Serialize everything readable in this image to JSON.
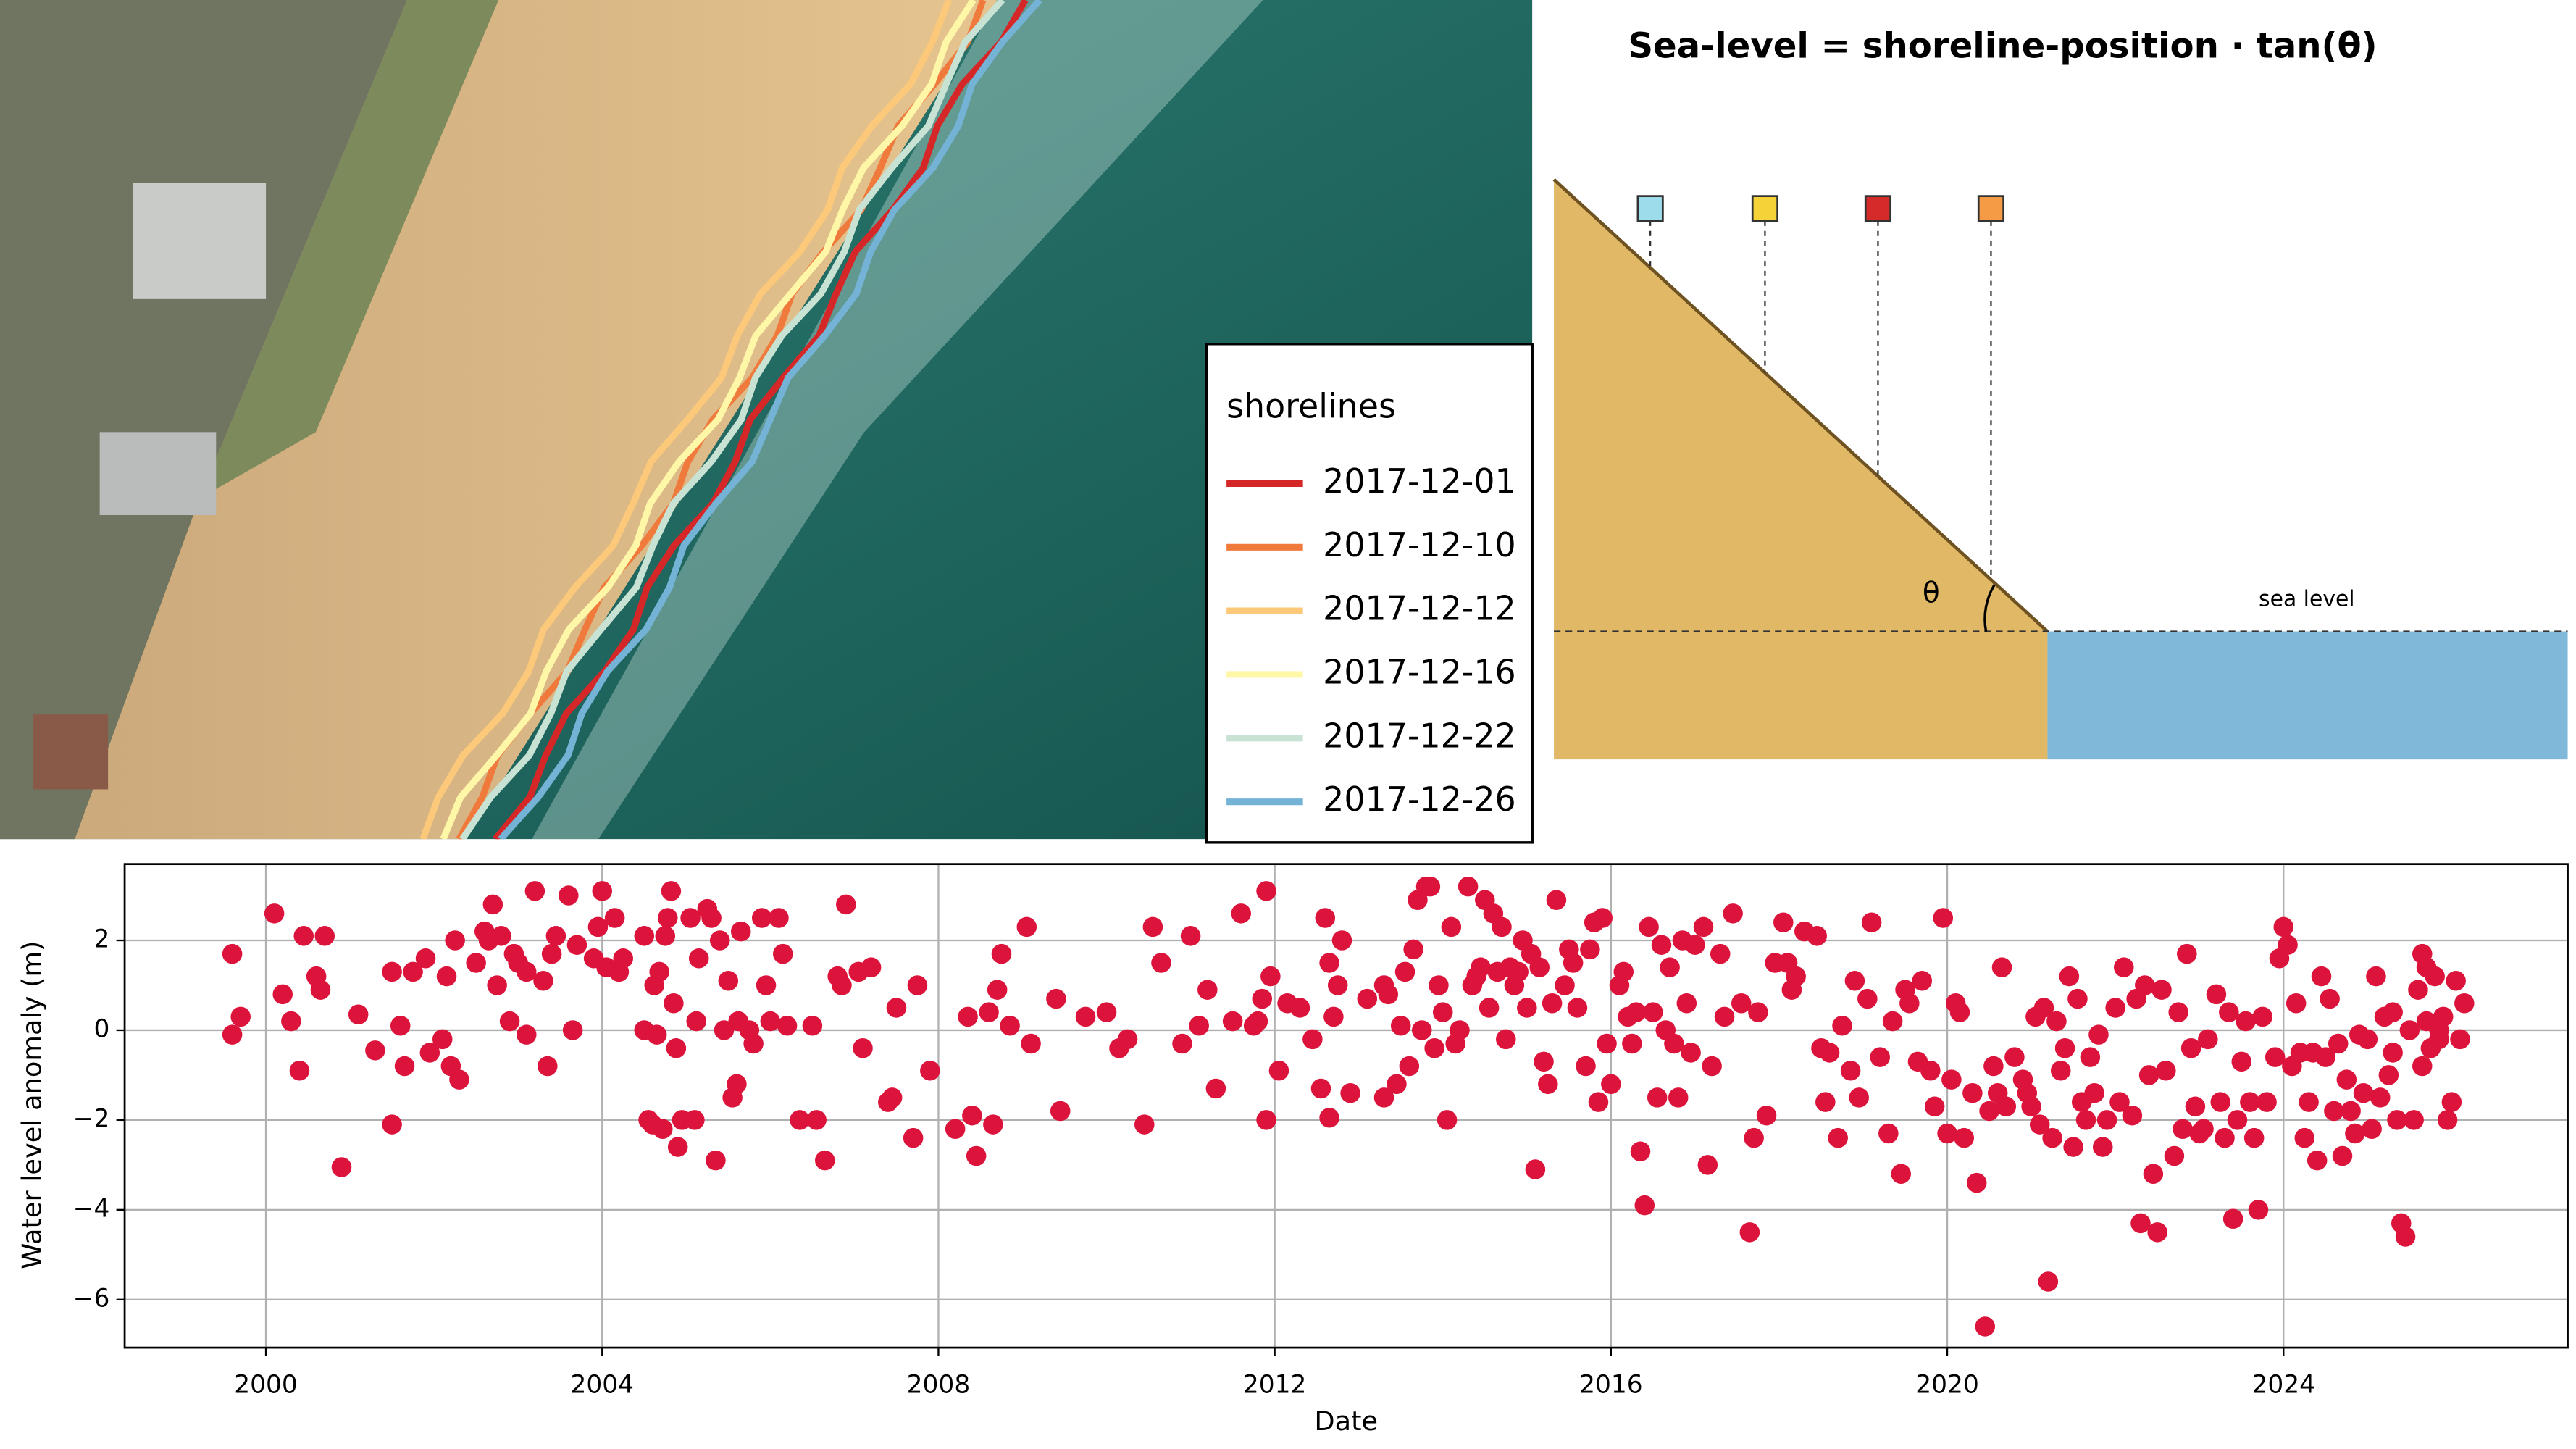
{
  "map": {
    "legend_title": "shorelines",
    "shorelines": [
      {
        "name": "2017-12-01",
        "color": "#d62728"
      },
      {
        "name": "2017-12-10",
        "color": "#f07a3c"
      },
      {
        "name": "2017-12-12",
        "color": "#fcc87a"
      },
      {
        "name": "2017-12-16",
        "color": "#fff7a8"
      },
      {
        "name": "2017-12-22",
        "color": "#c8e2d3"
      },
      {
        "name": "2017-12-26",
        "color": "#74b3d6"
      }
    ]
  },
  "diagram": {
    "title": "Sea-level = shoreline-position · tan(θ)",
    "angle_label": "θ",
    "sea_label": "sea level",
    "marker_colors": [
      "#9ddcea",
      "#f5d338",
      "#d42a2a",
      "#f59a45"
    ]
  },
  "chart_data": {
    "type": "scatter",
    "x_label": "Date",
    "y_label": "Water level anomaly (m)",
    "color": "#dc143c",
    "grid": true,
    "xlim": [
      1998.32,
      2027.38
    ],
    "ylim": [
      -7.07,
      3.7
    ],
    "xticks": [
      2000,
      2004,
      2008,
      2012,
      2016,
      2020,
      2024
    ],
    "yticks": [
      {
        "value": -6,
        "label": "−6"
      },
      {
        "value": -4,
        "label": "−4"
      },
      {
        "value": -2,
        "label": "−2"
      },
      0,
      2
    ],
    "x": [
      1999.6,
      1999.6,
      1999.7,
      2000.1,
      2000.2,
      2000.3,
      2000.4,
      2000.45,
      2000.6,
      2000.65,
      2000.7,
      2000.9,
      2001.1,
      2001.3,
      2001.5,
      2001.5,
      2001.6,
      2001.65,
      2001.75,
      2001.9,
      2001.95,
      2002.1,
      2002.15,
      2002.2,
      2002.25,
      2002.3,
      2002.5,
      2002.6,
      2002.65,
      2002.7,
      2002.75,
      2002.8,
      2002.9,
      2002.95,
      2003.0,
      2003.1,
      2003.1,
      2003.2,
      2003.3,
      2003.35,
      2003.4,
      2003.45,
      2003.6,
      2003.65,
      2003.7,
      2003.9,
      2003.95,
      2004.05,
      2004.15,
      2004.2,
      2004.25,
      2004.0,
      2004.5,
      2004.5,
      2004.55,
      2004.6,
      2004.62,
      2004.65,
      2004.68,
      2004.72,
      2004.75,
      2004.78,
      2004.82,
      2004.85,
      2004.88,
      2004.9,
      2004.95,
      2005.05,
      2005.1,
      2005.12,
      2005.15,
      2005.25,
      2005.3,
      2005.35,
      2005.4,
      2005.45,
      2005.5,
      2005.55,
      2005.6,
      2005.62,
      2005.65,
      2005.75,
      2005.8,
      2005.9,
      2005.95,
      2006.0,
      2006.1,
      2006.15,
      2006.2,
      2006.35,
      2006.5,
      2006.55,
      2006.65,
      2006.8,
      2006.85,
      2006.9,
      2007.05,
      2007.1,
      2007.2,
      2007.4,
      2007.5,
      2007.45,
      2007.7,
      2007.75,
      2007.9,
      2008.2,
      2008.35,
      2008.4,
      2008.45,
      2008.6,
      2008.65,
      2008.7,
      2008.75,
      2008.85,
      2009.05,
      2009.1,
      2009.4,
      2009.45,
      2009.75,
      2010.0,
      2010.15,
      2010.25,
      2010.45,
      2010.55,
      2010.65,
      2010.9,
      2011.0,
      2011.1,
      2011.2,
      2011.3,
      2011.5,
      2011.6,
      2011.75,
      2011.8,
      2011.85,
      2011.9,
      2011.95,
      2012.05,
      2012.15,
      2012.3,
      2012.45,
      2012.55,
      2012.65,
      2012.7,
      2012.8,
      2011.9,
      2012.75,
      2012.9,
      2013.3,
      2013.35,
      2012.6,
      2012.65,
      2013.1,
      2013.3,
      2013.45,
      2013.5,
      2013.55,
      2013.6,
      2013.65,
      2013.7,
      2013.75,
      2013.8,
      2013.85,
      2013.9,
      2013.95,
      2014.0,
      2014.05,
      2014.1,
      2014.15,
      2014.2,
      2014.3,
      2014.35,
      2014.4,
      2014.45,
      2014.5,
      2014.55,
      2014.6,
      2014.65,
      2014.7,
      2014.75,
      2014.8,
      2014.85,
      2014.9,
      2014.95,
      2015.0,
      2015.05,
      2015.1,
      2015.15,
      2015.2,
      2015.25,
      2015.3,
      2015.35,
      2015.45,
      2015.5,
      2015.55,
      2015.6,
      2015.7,
      2015.75,
      2015.8,
      2015.85,
      2015.9,
      2015.95,
      2016.0,
      2016.1,
      2016.15,
      2016.2,
      2016.25,
      2016.3,
      2016.35,
      2016.4,
      2016.45,
      2016.5,
      2016.55,
      2016.6,
      2016.65,
      2016.7,
      2016.75,
      2016.8,
      2016.85,
      2016.9,
      2016.95,
      2017.0,
      2017.1,
      2017.15,
      2017.2,
      2017.3,
      2017.35,
      2017.45,
      2017.55,
      2017.65,
      2017.7,
      2017.75,
      2017.85,
      2017.95,
      2018.05,
      2018.1,
      2018.15,
      2018.2,
      2018.3,
      2018.45,
      2018.5,
      2018.55,
      2018.6,
      2018.7,
      2018.75,
      2018.85,
      2018.9,
      2018.95,
      2019.05,
      2019.1,
      2019.2,
      2019.3,
      2019.35,
      2019.45,
      2019.5,
      2019.55,
      2019.65,
      2019.7,
      2019.8,
      2019.85,
      2019.95,
      2020.0,
      2020.05,
      2020.1,
      2020.15,
      2020.2,
      2020.3,
      2020.35,
      2020.45,
      2020.5,
      2020.55,
      2020.6,
      2020.65,
      2020.7,
      2020.8,
      2020.9,
      2020.95,
      2021.0,
      2021.05,
      2021.1,
      2021.15,
      2021.2,
      2021.25,
      2021.3,
      2021.35,
      2021.4,
      2021.45,
      2021.5,
      2021.55,
      2021.6,
      2021.65,
      2021.7,
      2021.75,
      2021.8,
      2021.85,
      2021.9,
      2022.0,
      2022.05,
      2022.1,
      2022.2,
      2022.25,
      2022.3,
      2022.35,
      2022.4,
      2022.45,
      2022.5,
      2022.55,
      2022.6,
      2022.7,
      2022.75,
      2022.8,
      2022.85,
      2022.9,
      2022.95,
      2023.0,
      2023.05,
      2023.1,
      2023.2,
      2023.25,
      2023.3,
      2023.35,
      2023.4,
      2023.45,
      2023.5,
      2023.55,
      2023.6,
      2023.65,
      2023.7,
      2023.75,
      2023.8,
      2023.9,
      2023.95,
      2024.0,
      2024.05,
      2024.1,
      2024.15,
      2024.2,
      2024.25,
      2024.3,
      2024.35,
      2024.4,
      2024.45,
      2024.5,
      2024.55,
      2024.6,
      2024.65,
      2024.7,
      2024.75,
      2024.8,
      2024.85,
      2024.9,
      2024.95,
      2025.0,
      2025.05,
      2025.1,
      2025.15,
      2025.2,
      2025.25,
      2025.3,
      2025.35,
      2025.4,
      2025.45,
      2025.5,
      2025.55,
      2025.6,
      2025.65,
      2025.7,
      2025.75,
      2025.8,
      2025.85,
      2025.9,
      2025.95,
      2026.0,
      2026.05,
      2026.1,
      2026.15,
      2025.65,
      2025.85,
      2025.3,
      2025.7
    ],
    "values": [
      1.7,
      -0.1,
      0.3,
      2.6,
      0.8,
      0.2,
      -0.9,
      2.1,
      1.2,
      0.9,
      2.1,
      -3.05,
      0.35,
      -0.45,
      -2.1,
      1.3,
      0.1,
      -0.8,
      1.3,
      1.6,
      -0.5,
      -0.2,
      1.2,
      -0.8,
      2.0,
      -1.1,
      1.5,
      2.2,
      2.0,
      2.8,
      1.0,
      2.1,
      0.2,
      1.7,
      1.5,
      1.3,
      -0.1,
      3.1,
      1.1,
      -0.8,
      1.7,
      2.1,
      3.0,
      0.0,
      1.9,
      1.6,
      2.3,
      1.4,
      2.5,
      1.3,
      1.6,
      3.1,
      2.1,
      0.0,
      -2.0,
      -2.1,
      1.0,
      -0.1,
      1.3,
      -2.2,
      2.1,
      2.5,
      3.1,
      0.6,
      -0.4,
      -2.6,
      -2.0,
      2.5,
      -2.0,
      0.2,
      1.6,
      2.7,
      2.5,
      -2.9,
      2.0,
      0.0,
      1.1,
      -1.5,
      -1.2,
      0.2,
      2.2,
      0.0,
      -0.3,
      2.5,
      1.0,
      0.2,
      2.5,
      1.7,
      0.1,
      -2.0,
      0.1,
      -2.0,
      -2.9,
      1.2,
      1.0,
      2.8,
      1.3,
      -0.4,
      1.4,
      -1.6,
      0.5,
      -1.5,
      -2.4,
      1.0,
      -0.9,
      -2.2,
      0.3,
      -1.9,
      -2.8,
      0.4,
      -2.1,
      0.9,
      1.7,
      0.1,
      2.3,
      -0.3,
      0.7,
      -1.8,
      0.3,
      0.4,
      -0.4,
      -0.2,
      -2.1,
      2.3,
      1.5,
      -0.3,
      2.1,
      0.1,
      0.9,
      -1.3,
      0.2,
      2.6,
      0.1,
      0.2,
      0.7,
      -2.0,
      1.2,
      -0.9,
      0.6,
      0.5,
      -0.2,
      -1.3,
      1.5,
      0.3,
      2.0,
      3.1,
      1.0,
      -1.4,
      1.0,
      0.8,
      2.5,
      -1.95,
      0.7,
      -1.5,
      -1.2,
      0.1,
      1.3,
      -0.8,
      1.8,
      2.9,
      0.0,
      3.2,
      3.2,
      -0.4,
      1.0,
      0.4,
      -2.0,
      2.3,
      -0.3,
      0.0,
      3.2,
      1.0,
      1.2,
      1.4,
      2.9,
      0.5,
      2.6,
      1.3,
      2.3,
      -0.2,
      1.4,
      1.0,
      1.3,
      2.0,
      0.5,
      1.7,
      -3.1,
      1.4,
      -0.7,
      -1.2,
      0.6,
      2.9,
      1.0,
      1.8,
      1.5,
      0.5,
      -0.8,
      1.8,
      2.4,
      -1.6,
      2.5,
      -0.3,
      -1.2,
      1.0,
      1.3,
      0.3,
      -0.3,
      0.4,
      -2.7,
      -3.9,
      2.3,
      0.4,
      -1.5,
      1.9,
      0.0,
      1.4,
      -0.3,
      -1.5,
      2.0,
      0.6,
      -0.5,
      1.9,
      2.3,
      -3.0,
      -0.8,
      1.7,
      0.3,
      2.6,
      0.6,
      -4.5,
      -2.4,
      0.4,
      -1.9,
      1.5,
      2.4,
      1.5,
      0.9,
      1.2,
      2.2,
      2.1,
      -0.4,
      -1.6,
      -0.5,
      -2.4,
      0.1,
      -0.9,
      1.1,
      -1.5,
      0.7,
      2.4,
      -0.6,
      -2.3,
      0.2,
      -3.2,
      0.9,
      0.6,
      -0.7,
      1.1,
      -0.9,
      -1.7,
      2.5,
      -2.3,
      -1.1,
      0.6,
      0.4,
      -2.4,
      -1.4,
      -3.4,
      -6.6,
      -1.8,
      -0.8,
      -1.4,
      1.4,
      -1.7,
      -0.6,
      -1.1,
      -1.4,
      -1.7,
      0.3,
      -2.1,
      0.5,
      -5.6,
      -2.4,
      0.2,
      -0.9,
      -0.4,
      1.2,
      -2.6,
      0.7,
      -1.6,
      -2.0,
      -0.6,
      -1.4,
      -0.1,
      -2.6,
      -2.0,
      0.5,
      -1.6,
      1.4,
      -1.9,
      0.7,
      -4.3,
      1.0,
      -1.0,
      -3.2,
      -4.5,
      0.9,
      -0.9,
      -2.8,
      0.4,
      -2.2,
      1.7,
      -0.4,
      -1.7,
      -2.3,
      -2.2,
      -0.2,
      0.8,
      -1.6,
      -2.4,
      0.4,
      -4.2,
      -2.0,
      -0.7,
      0.2,
      -1.6,
      -2.4,
      -4.0,
      0.3,
      -1.6,
      -0.6,
      1.6,
      2.3,
      1.9,
      -0.8,
      0.6,
      -0.5,
      -2.4,
      -1.6,
      -0.5,
      -2.9,
      1.2,
      -0.6,
      0.7,
      -1.8,
      -0.3,
      -2.8,
      -1.1,
      -1.8,
      -2.3,
      -0.1,
      -1.4,
      -0.2,
      -2.2,
      1.2,
      -1.5,
      0.3,
      -1.0,
      -0.5,
      -2.0,
      -4.3,
      -4.6,
      0.0,
      -2.0,
      0.9,
      1.7,
      0.2,
      -0.4,
      1.2,
      0.0,
      0.3,
      -2.0,
      -1.6,
      1.1,
      -0.2,
      0.6,
      -0.8,
      -0.2,
      0.4,
      1.4
    ]
  }
}
